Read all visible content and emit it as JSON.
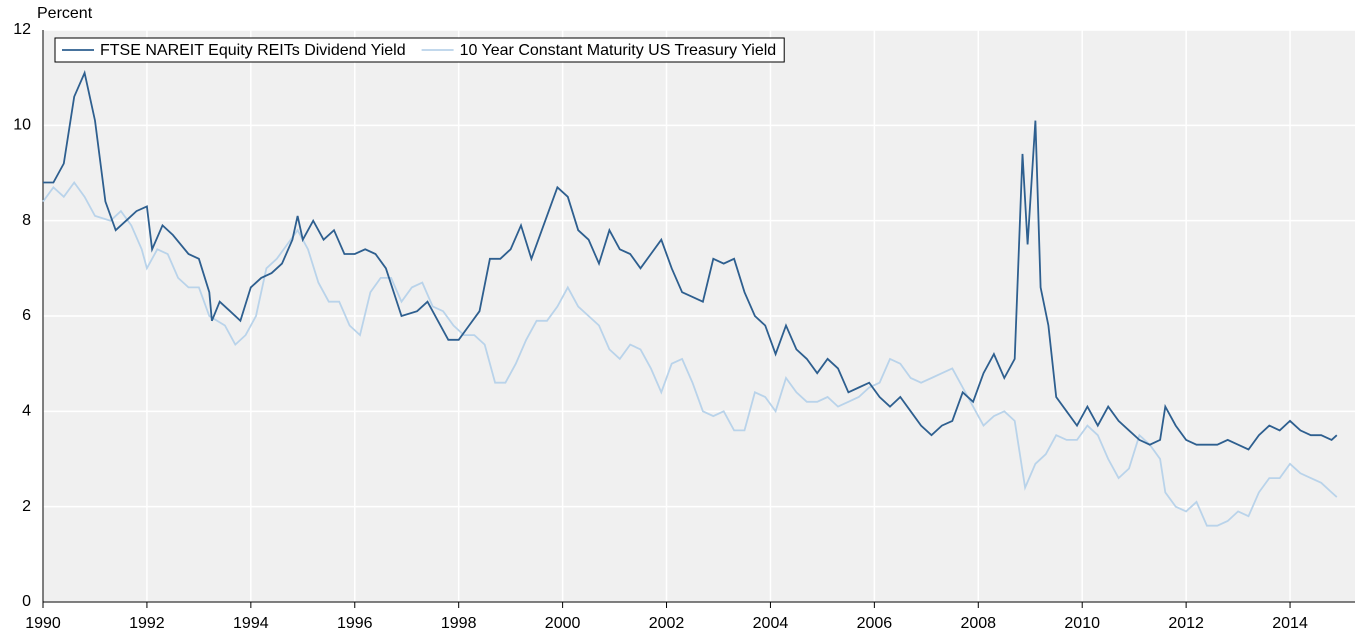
{
  "chart_data": {
    "type": "line",
    "title": "Percent",
    "legend": "upper left",
    "grid": true,
    "xlim": [
      1990,
      2015.25
    ],
    "xticks": [
      1990,
      1992,
      1994,
      1996,
      1998,
      2000,
      2002,
      2004,
      2006,
      2008,
      2010,
      2012,
      2014
    ],
    "ylim": [
      0,
      12
    ],
    "yticks": [
      0,
      2,
      4,
      6,
      8,
      10,
      12
    ],
    "series": [
      {
        "name": "FTSE NAREIT Equity REITs Dividend Yield",
        "color": "#2e5f8f",
        "x": [
          1990.0,
          1990.2,
          1990.4,
          1990.6,
          1990.8,
          1991.0,
          1991.2,
          1991.4,
          1991.6,
          1991.8,
          1992.0,
          1992.1,
          1992.3,
          1992.5,
          1992.8,
          1993.0,
          1993.2,
          1993.25,
          1993.4,
          1993.6,
          1993.8,
          1994.0,
          1994.2,
          1994.4,
          1994.6,
          1994.8,
          1994.9,
          1995.0,
          1995.2,
          1995.4,
          1995.6,
          1995.8,
          1996.0,
          1996.2,
          1996.4,
          1996.6,
          1996.9,
          1997.2,
          1997.4,
          1997.6,
          1997.8,
          1998.0,
          1998.2,
          1998.4,
          1998.6,
          1998.8,
          1999.0,
          1999.2,
          1999.4,
          1999.6,
          1999.8,
          1999.9,
          2000.1,
          2000.3,
          2000.5,
          2000.7,
          2000.9,
          2001.1,
          2001.3,
          2001.5,
          2001.7,
          2001.9,
          2002.1,
          2002.3,
          2002.5,
          2002.7,
          2002.9,
          2003.1,
          2003.3,
          2003.5,
          2003.7,
          2003.9,
          2004.1,
          2004.3,
          2004.5,
          2004.7,
          2004.9,
          2005.1,
          2005.3,
          2005.5,
          2005.7,
          2005.9,
          2006.1,
          2006.3,
          2006.5,
          2006.7,
          2006.9,
          2007.1,
          2007.3,
          2007.5,
          2007.7,
          2007.9,
          2008.1,
          2008.3,
          2008.5,
          2008.7,
          2008.85,
          2008.95,
          2009.1,
          2009.2,
          2009.35,
          2009.5,
          2009.7,
          2009.9,
          2010.1,
          2010.3,
          2010.5,
          2010.7,
          2010.9,
          2011.1,
          2011.3,
          2011.5,
          2011.6,
          2011.8,
          2012.0,
          2012.2,
          2012.4,
          2012.6,
          2012.8,
          2013.0,
          2013.2,
          2013.4,
          2013.6,
          2013.8,
          2014.0,
          2014.2,
          2014.4,
          2014.6,
          2014.8,
          2014.9
        ],
        "values": [
          8.8,
          8.8,
          9.2,
          10.6,
          11.1,
          10.1,
          8.4,
          7.8,
          8.0,
          8.2,
          8.3,
          7.4,
          7.9,
          7.7,
          7.3,
          7.2,
          6.5,
          5.9,
          6.3,
          6.1,
          5.9,
          6.6,
          6.8,
          6.9,
          7.1,
          7.6,
          8.1,
          7.6,
          8.0,
          7.6,
          7.8,
          7.3,
          7.3,
          7.4,
          7.3,
          7.0,
          6.0,
          6.1,
          6.3,
          5.9,
          5.5,
          5.5,
          5.8,
          6.1,
          7.2,
          7.2,
          7.4,
          7.9,
          7.2,
          7.8,
          8.4,
          8.7,
          8.5,
          7.8,
          7.6,
          7.1,
          7.8,
          7.4,
          7.3,
          7.0,
          7.3,
          7.6,
          7.0,
          6.5,
          6.4,
          6.3,
          7.2,
          7.1,
          7.2,
          6.5,
          6.0,
          5.8,
          5.2,
          5.8,
          5.3,
          5.1,
          4.8,
          5.1,
          4.9,
          4.4,
          4.5,
          4.6,
          4.3,
          4.1,
          4.3,
          4.0,
          3.7,
          3.5,
          3.7,
          3.8,
          4.4,
          4.2,
          4.8,
          5.2,
          4.7,
          5.1,
          9.4,
          7.5,
          10.1,
          6.6,
          5.8,
          4.3,
          4.0,
          3.7,
          4.1,
          3.7,
          4.1,
          3.8,
          3.6,
          3.4,
          3.3,
          3.4,
          4.1,
          3.7,
          3.4,
          3.3,
          3.3,
          3.3,
          3.4,
          3.3,
          3.2,
          3.5,
          3.7,
          3.6,
          3.8,
          3.6,
          3.5,
          3.5,
          3.4,
          3.5
        ]
      },
      {
        "name": "10 Year Constant Maturity US Treasury Yield",
        "color": "#b9d3ea",
        "x": [
          1990.0,
          1990.2,
          1990.4,
          1990.6,
          1990.8,
          1991.0,
          1991.3,
          1991.5,
          1991.7,
          1991.9,
          1992.0,
          1992.2,
          1992.4,
          1992.6,
          1992.8,
          1993.0,
          1993.2,
          1993.5,
          1993.7,
          1993.9,
          1994.1,
          1994.3,
          1994.5,
          1994.7,
          1994.9,
          1995.1,
          1995.3,
          1995.5,
          1995.7,
          1995.9,
          1996.1,
          1996.3,
          1996.5,
          1996.7,
          1996.9,
          1997.1,
          1997.3,
          1997.5,
          1997.7,
          1997.9,
          1998.1,
          1998.3,
          1998.5,
          1998.7,
          1998.9,
          1999.1,
          1999.3,
          1999.5,
          1999.7,
          1999.9,
          2000.1,
          2000.3,
          2000.5,
          2000.7,
          2000.9,
          2001.1,
          2001.3,
          2001.5,
          2001.7,
          2001.9,
          2002.1,
          2002.3,
          2002.5,
          2002.7,
          2002.9,
          2003.1,
          2003.3,
          2003.5,
          2003.7,
          2003.9,
          2004.1,
          2004.3,
          2004.5,
          2004.7,
          2004.9,
          2005.1,
          2005.3,
          2005.5,
          2005.7,
          2005.9,
          2006.1,
          2006.3,
          2006.5,
          2006.7,
          2006.9,
          2007.1,
          2007.3,
          2007.5,
          2007.7,
          2007.9,
          2008.1,
          2008.3,
          2008.5,
          2008.7,
          2008.9,
          2009.1,
          2009.3,
          2009.5,
          2009.7,
          2009.9,
          2010.1,
          2010.3,
          2010.5,
          2010.7,
          2010.9,
          2011.1,
          2011.3,
          2011.5,
          2011.6,
          2011.8,
          2012.0,
          2012.2,
          2012.4,
          2012.6,
          2012.8,
          2013.0,
          2013.2,
          2013.4,
          2013.6,
          2013.8,
          2014.0,
          2014.2,
          2014.4,
          2014.6,
          2014.8,
          2014.9
        ],
        "values": [
          8.4,
          8.7,
          8.5,
          8.8,
          8.5,
          8.1,
          8.0,
          8.2,
          7.9,
          7.4,
          7.0,
          7.4,
          7.3,
          6.8,
          6.6,
          6.6,
          6.0,
          5.8,
          5.4,
          5.6,
          6.0,
          7.0,
          7.2,
          7.5,
          7.8,
          7.4,
          6.7,
          6.3,
          6.3,
          5.8,
          5.6,
          6.5,
          6.8,
          6.8,
          6.3,
          6.6,
          6.7,
          6.2,
          6.1,
          5.8,
          5.6,
          5.6,
          5.4,
          4.6,
          4.6,
          5.0,
          5.5,
          5.9,
          5.9,
          6.2,
          6.6,
          6.2,
          6.0,
          5.8,
          5.3,
          5.1,
          5.4,
          5.3,
          4.9,
          4.4,
          5.0,
          5.1,
          4.6,
          4.0,
          3.9,
          4.0,
          3.6,
          3.6,
          4.4,
          4.3,
          4.0,
          4.7,
          4.4,
          4.2,
          4.2,
          4.3,
          4.1,
          4.2,
          4.3,
          4.5,
          4.6,
          5.1,
          5.0,
          4.7,
          4.6,
          4.7,
          4.8,
          4.9,
          4.5,
          4.1,
          3.7,
          3.9,
          4.0,
          3.8,
          2.4,
          2.9,
          3.1,
          3.5,
          3.4,
          3.4,
          3.7,
          3.5,
          3.0,
          2.6,
          2.8,
          3.5,
          3.3,
          3.0,
          2.3,
          2.0,
          1.9,
          2.1,
          1.6,
          1.6,
          1.7,
          1.9,
          1.8,
          2.3,
          2.6,
          2.6,
          2.9,
          2.7,
          2.6,
          2.5,
          2.3,
          2.2
        ]
      }
    ]
  }
}
